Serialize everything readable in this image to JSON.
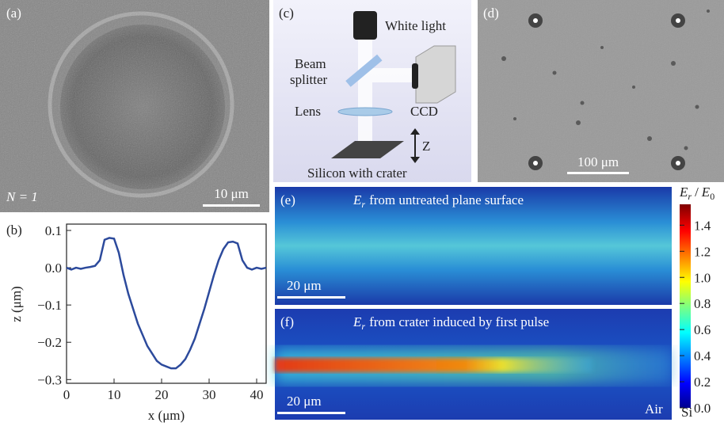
{
  "panels": {
    "a": {
      "label": "(a)",
      "annotation": "N = 1",
      "scale_bar": "10 μm"
    },
    "c": {
      "label": "(c)",
      "white_light": "White light",
      "beam": "Beam",
      "splitter": "splitter",
      "lens": "Lens",
      "ccd": "CCD",
      "z": "Z",
      "sample": "Silicon with crater"
    },
    "d": {
      "label": "(d)",
      "scale_bar": "100 μm"
    },
    "e": {
      "label": "(e)",
      "symbol": "E",
      "subscript": "r",
      "caption": "from untreated plane surface",
      "scale_bar": "20 μm"
    },
    "f": {
      "label": "(f)",
      "symbol": "E",
      "subscript": "r",
      "caption": "from crater induced by first pulse",
      "scale_bar": "20 μm",
      "medium_left": "Air",
      "medium_right": "Si"
    },
    "colorbar": {
      "num": "E",
      "num_sub": "r",
      "sep": "/",
      "den": "E",
      "den_sub": "0",
      "lim": [
        0,
        1.56
      ],
      "ticks": [
        {
          "value": 0,
          "label": "0.0"
        },
        {
          "value": 0.2,
          "label": "0.2"
        },
        {
          "value": 0.4,
          "label": "0.4"
        },
        {
          "value": 0.6,
          "label": "0.6"
        },
        {
          "value": 0.8,
          "label": "0.8"
        },
        {
          "value": 1.0,
          "label": "1.0"
        },
        {
          "value": 1.2,
          "label": "1.2"
        },
        {
          "value": 1.4,
          "label": "1.4"
        }
      ]
    }
  },
  "chart_data": {
    "type": "line",
    "panel_label": "(b)",
    "xlabel": "x (μm)",
    "ylabel": "z (μm)",
    "x": [
      0,
      1,
      2,
      3,
      4,
      5,
      6,
      7,
      8,
      9,
      10,
      11,
      12,
      13,
      14,
      15,
      16,
      17,
      18,
      19,
      20,
      21,
      22,
      23,
      24,
      25,
      26,
      27,
      28,
      29,
      30,
      31,
      32,
      33,
      34,
      35,
      36,
      37,
      38,
      39,
      40,
      41,
      42
    ],
    "series": [
      {
        "color": "#2c4a9c",
        "values": [
          0,
          -0.005,
          0,
          -0.003,
          0,
          0.002,
          0.005,
          0.02,
          0.075,
          0.08,
          0.078,
          0.04,
          -0.02,
          -0.07,
          -0.11,
          -0.15,
          -0.18,
          -0.21,
          -0.23,
          -0.25,
          -0.26,
          -0.265,
          -0.27,
          -0.27,
          -0.26,
          -0.245,
          -0.22,
          -0.19,
          -0.15,
          -0.11,
          -0.065,
          -0.02,
          0.02,
          0.05,
          0.068,
          0.07,
          0.065,
          0.02,
          0,
          -0.005,
          0,
          -0.003,
          0
        ]
      }
    ],
    "xlim": [
      0,
      42
    ],
    "ylim": [
      -0.31,
      0.117
    ],
    "xticks": [
      0,
      10,
      20,
      30,
      40
    ],
    "yticks": [
      {
        "value": 0.1,
        "label": "0.1"
      },
      {
        "value": 0,
        "label": "0.0"
      },
      {
        "value": -0.1,
        "label": "−0.1"
      },
      {
        "value": -0.2,
        "label": "−0.2"
      },
      {
        "value": -0.3,
        "label": "−0.3"
      }
    ]
  }
}
